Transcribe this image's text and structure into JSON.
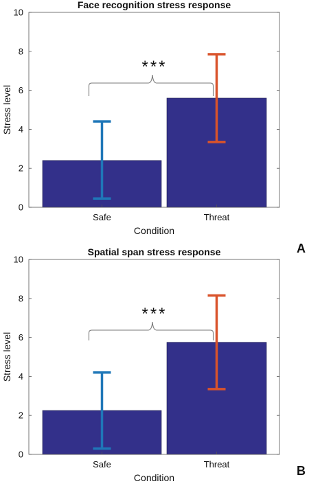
{
  "colors": {
    "bar": "#33308a",
    "safe_error": "#1f77b8",
    "threat_error": "#d9532b",
    "axis": "#555555",
    "bracket": "#777777"
  },
  "chart_data": [
    {
      "type": "bar",
      "panel_label": "A",
      "title": "Face recognition stress response",
      "xlabel": "Condition",
      "ylabel": "Stress level",
      "categories": [
        "Safe",
        "Threat"
      ],
      "values": [
        2.4,
        5.6
      ],
      "error_low": [
        0.45,
        3.35
      ],
      "error_high": [
        4.4,
        7.85
      ],
      "ylim": [
        0,
        10
      ],
      "yticks": [
        0,
        2,
        4,
        6,
        8,
        10
      ],
      "significance": "***",
      "grid": false
    },
    {
      "type": "bar",
      "panel_label": "B",
      "title": "Spatial span stress response",
      "xlabel": "Condition",
      "ylabel": "Stress level",
      "categories": [
        "Safe",
        "Threat"
      ],
      "values": [
        2.25,
        5.75
      ],
      "error_low": [
        0.3,
        3.35
      ],
      "error_high": [
        4.2,
        8.15
      ],
      "ylim": [
        0,
        10
      ],
      "yticks": [
        0,
        2,
        4,
        6,
        8,
        10
      ],
      "significance": "***",
      "grid": false
    }
  ]
}
